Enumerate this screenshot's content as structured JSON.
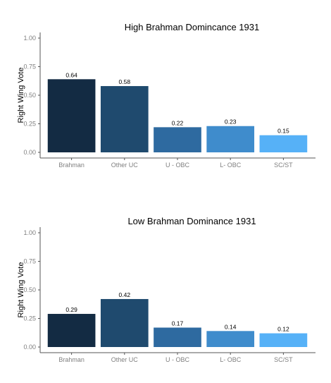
{
  "chart_data": [
    {
      "type": "bar",
      "title": "High Brahman Domincance 1931",
      "ylabel": "Right Wing Vote",
      "xlabel": "",
      "categories": [
        "Brahman",
        "Other UC",
        "U - OBC",
        "L- OBC",
        "SC/ST"
      ],
      "values": [
        0.64,
        0.58,
        0.22,
        0.23,
        0.15
      ],
      "value_labels": [
        "0.64",
        "0.58",
        "0.22",
        "0.23",
        "0.15"
      ],
      "ylim": [
        0,
        1
      ],
      "yticks": [
        0,
        0.25,
        0.5,
        0.75,
        1.0
      ],
      "ytick_labels": [
        "0.00",
        "0.25",
        "0.50",
        "0.75",
        "1.00"
      ],
      "colors": [
        "#132b43",
        "#1f4a6e",
        "#2e6aa0",
        "#3f8ccc",
        "#56b1f7"
      ],
      "grid": false,
      "legend": "none"
    },
    {
      "type": "bar",
      "title": "Low Brahman Dominance 1931",
      "ylabel": "Right Wing Vote",
      "xlabel": "",
      "categories": [
        "Brahman",
        "Other UC",
        "U - OBC",
        "L- OBC",
        "SC/ST"
      ],
      "values": [
        0.29,
        0.42,
        0.17,
        0.14,
        0.12
      ],
      "value_labels": [
        "0.29",
        "0.42",
        "0.17",
        "0.14",
        "0.12"
      ],
      "ylim": [
        0,
        1
      ],
      "yticks": [
        0,
        0.25,
        0.5,
        0.75,
        1.0
      ],
      "ytick_labels": [
        "0.00",
        "0.25",
        "0.50",
        "0.75",
        "1.00"
      ],
      "colors": [
        "#132b43",
        "#1f4a6e",
        "#2e6aa0",
        "#3f8ccc",
        "#56b1f7"
      ],
      "grid": false,
      "legend": "none"
    }
  ]
}
